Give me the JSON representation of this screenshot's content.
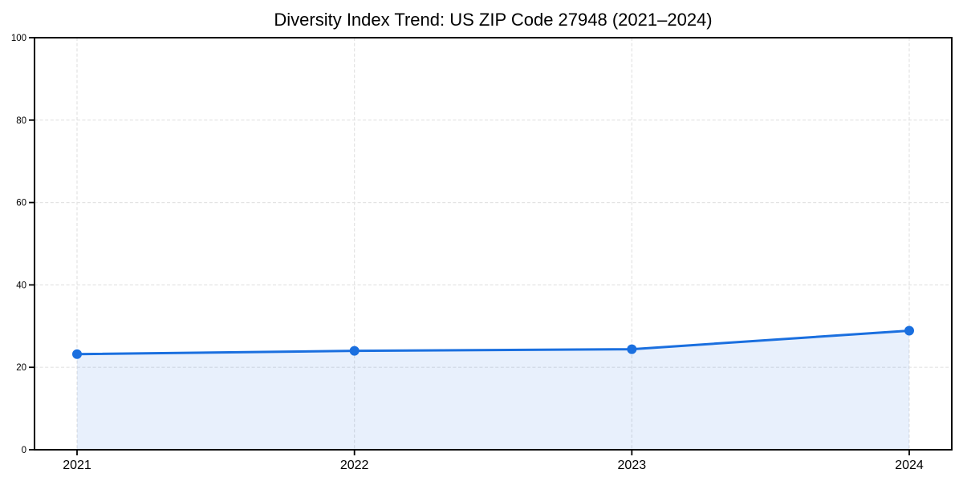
{
  "chart_data": {
    "type": "area",
    "title": "Diversity Index Trend: US ZIP Code 27948 (2021–2024)",
    "categories": [
      "2021",
      "2022",
      "2023",
      "2024"
    ],
    "series": [
      {
        "name": "Diversity Index",
        "values": [
          23.2,
          24.0,
          24.4,
          28.9
        ]
      }
    ],
    "xlabel": "",
    "ylabel": "",
    "ylim": [
      0,
      100
    ],
    "yticks": [
      0,
      20,
      40,
      60,
      80,
      100
    ],
    "grid": true,
    "grid_style": "dashed",
    "legend_position": "none",
    "marker": "circle",
    "colors": {
      "line": "#1A6FDF",
      "marker": "#1A6FDF",
      "fill": "rgba(26,111,223,0.10)",
      "grid": "#E3E3E3",
      "axis": "#000000",
      "tick_text": "#000000",
      "title_text": "#000000",
      "background": "#FFFFFF"
    }
  }
}
